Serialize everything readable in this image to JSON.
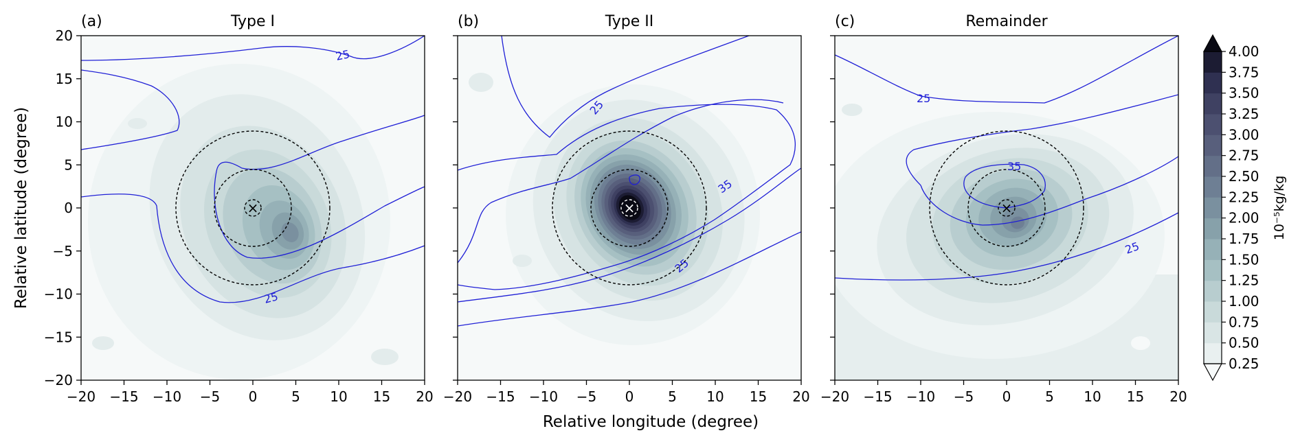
{
  "chart_data": {
    "type": "heatmap",
    "shared": {
      "xlabel": "Relative longitude (degree)",
      "ylabel": "Relative latitude (degree)",
      "xlim": [
        -20,
        20
      ],
      "ylim": [
        -20,
        20
      ],
      "xticks": [
        "−20",
        "−15",
        "−10",
        "−5",
        "0",
        "5",
        "10",
        "15",
        "20"
      ],
      "yticks": [
        "20",
        "15",
        "10",
        "5",
        "0",
        "−5",
        "−10",
        "−15",
        "−20"
      ],
      "colorbar": {
        "label": "10⁻⁵kg/kg",
        "levels": [
          "0.25",
          "0.50",
          "0.75",
          "1.00",
          "1.25",
          "1.50",
          "1.75",
          "2.00",
          "2.25",
          "2.50",
          "2.75",
          "3.00",
          "3.25",
          "3.50",
          "3.75",
          "4.00"
        ],
        "colors": [
          "#f7fafa",
          "#e9f0f0",
          "#d9e5e5",
          "#c9dada",
          "#b8cdcf",
          "#a6c0c3",
          "#96b1b7",
          "#87a1aa",
          "#7a909f",
          "#6e7f94",
          "#636f88",
          "#585f7c",
          "#4c5070",
          "#3f4162",
          "#2f3051",
          "#1c1c33",
          "#0a0a14"
        ]
      },
      "contour_color": "#1f1fd6",
      "circle_radii_degree": [
        1.2,
        4.5,
        9
      ],
      "center_marker": "×"
    },
    "panels": [
      {
        "tag": "(a)",
        "title": "Type I",
        "contour_labels": [
          "25",
          "25"
        ],
        "peak_value_approx": 2.4
      },
      {
        "tag": "(b)",
        "title": "Type II",
        "contour_labels": [
          "25",
          "35",
          "25"
        ],
        "peak_value_approx": 4.0
      },
      {
        "tag": "(c)",
        "title": "Remainder",
        "contour_labels": [
          "25",
          "35",
          "25"
        ],
        "peak_value_approx": 2.3
      }
    ]
  }
}
